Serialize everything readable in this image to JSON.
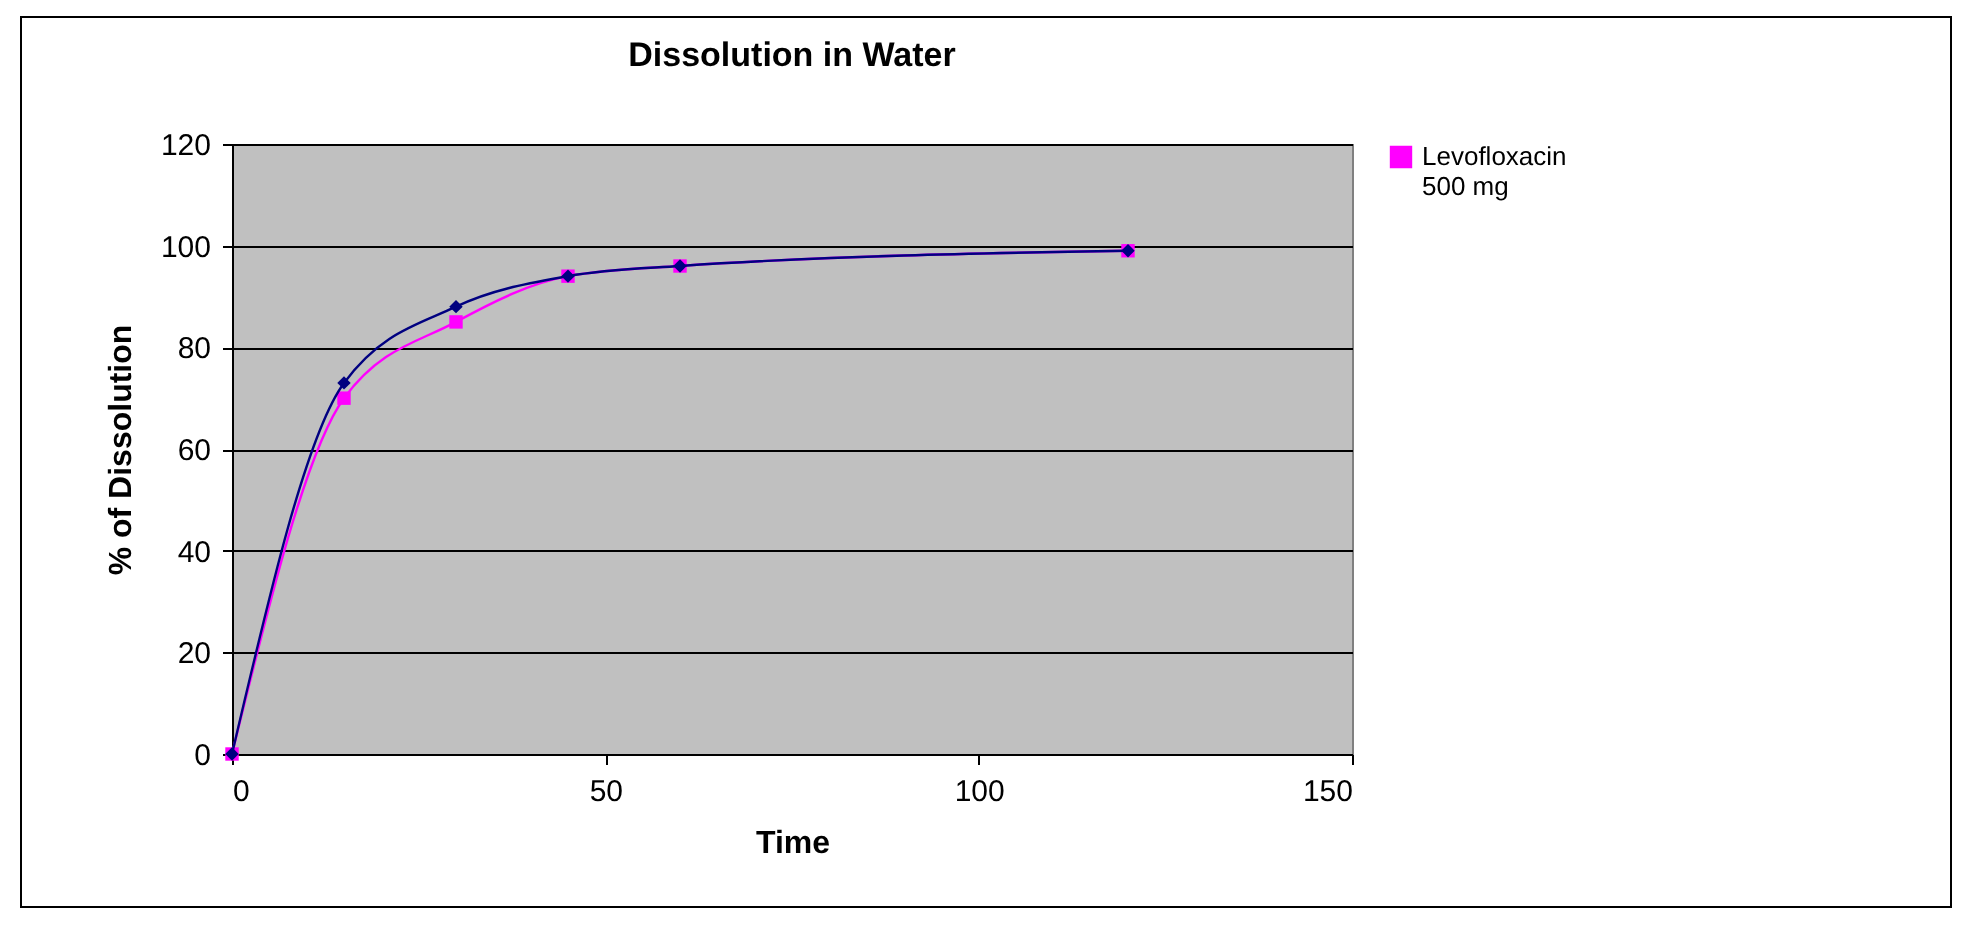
{
  "chart_data": {
    "type": "line",
    "title": "Dissolution in  Water",
    "xlabel": "Time",
    "ylabel": "% of Dissolution",
    "xlim": [
      0,
      150
    ],
    "xticks": [
      0,
      50,
      100,
      150
    ],
    "ylim": [
      0,
      120
    ],
    "yticks": [
      0,
      20,
      40,
      60,
      80,
      100,
      120
    ],
    "grid": "y",
    "legend": "right",
    "series": [
      {
        "color": "#000080",
        "marker": "diamond",
        "x": [
          0,
          15,
          30,
          45,
          60,
          120
        ],
        "values": [
          0,
          73,
          88,
          94,
          96,
          99
        ]
      },
      {
        "name": "Levofloxacin 500 mg",
        "color": "#ff00ff",
        "marker": "square",
        "x": [
          0,
          15,
          30,
          45,
          60,
          120
        ],
        "values": [
          0,
          70,
          85,
          94,
          96,
          99
        ]
      }
    ]
  }
}
